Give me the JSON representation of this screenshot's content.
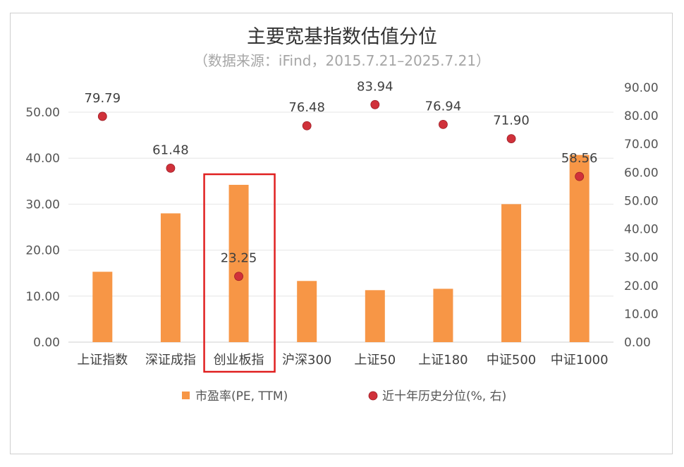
{
  "chart_data": {
    "type": "bar",
    "title": "主要宽基指数估值分位",
    "subtitle": "（数据来源：iFind，2015.7.21–2025.7.21）",
    "categories": [
      "上证指数",
      "深证成指",
      "创业板指",
      "沪深300",
      "上证50",
      "上证180",
      "中证500",
      "中证1000"
    ],
    "series": [
      {
        "name": "市盈率(PE, TTM)",
        "type": "bar",
        "axis": "left",
        "color": "#f79646",
        "values": [
          15.3,
          28.0,
          34.2,
          13.3,
          11.3,
          11.6,
          30.0,
          40.7
        ]
      },
      {
        "name": "近十年历史分位(%, 右)",
        "type": "scatter",
        "axis": "right",
        "color": "#d0313a",
        "values": [
          79.79,
          61.48,
          23.25,
          76.48,
          83.94,
          76.94,
          71.9,
          58.56
        ],
        "labels": [
          "79.79",
          "61.48",
          "23.25",
          "76.48",
          "83.94",
          "76.94",
          "71.90",
          "58.56"
        ]
      }
    ],
    "y_left": {
      "min": 0,
      "max": 50,
      "step": 10,
      "ticks": [
        "0.00",
        "10.00",
        "20.00",
        "30.00",
        "40.00",
        "50.00"
      ]
    },
    "y_right": {
      "min": 0,
      "max": 90,
      "step": 10,
      "ticks": [
        "0.00",
        "10.00",
        "20.00",
        "30.00",
        "40.00",
        "50.00",
        "60.00",
        "70.00",
        "80.00",
        "90.00"
      ]
    },
    "grid": true,
    "legend_position": "bottom",
    "highlight": {
      "category": "创业板指",
      "color": "#e02020"
    }
  }
}
